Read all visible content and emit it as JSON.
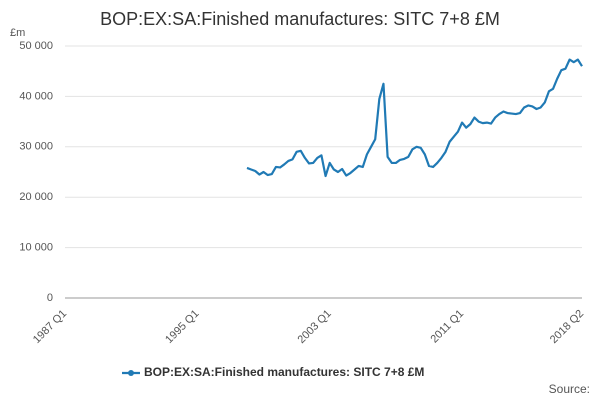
{
  "chart_data": {
    "type": "line",
    "title": "BOP:EX:SA:Finished manufactures: SITC 7+8 £M",
    "y_unit": "£m",
    "source": "Source:",
    "categories": [
      "1987 Q1",
      null,
      null,
      null,
      null,
      null,
      null,
      null,
      null,
      null,
      null,
      null,
      null,
      null,
      null,
      null,
      null,
      null,
      null,
      null,
      null,
      null,
      null,
      null,
      null,
      null,
      null,
      null,
      null,
      null,
      null,
      null,
      "1995 Q1",
      null,
      null,
      null,
      null,
      null,
      null,
      null,
      null,
      null,
      null,
      null,
      null,
      null,
      null,
      null,
      null,
      null,
      null,
      null,
      null,
      null,
      null,
      null,
      null,
      null,
      null,
      null,
      null,
      null,
      null,
      null,
      "2003 Q1",
      null,
      null,
      null,
      null,
      null,
      null,
      null,
      null,
      null,
      null,
      null,
      null,
      null,
      null,
      null,
      null,
      null,
      null,
      null,
      null,
      null,
      null,
      null,
      null,
      null,
      null,
      null,
      null,
      null,
      null,
      null,
      "2011 Q1",
      null,
      null,
      null,
      null,
      null,
      null,
      null,
      null,
      null,
      null,
      null,
      null,
      null,
      null,
      null,
      null,
      null,
      null,
      null,
      null,
      null,
      null,
      null,
      null,
      null,
      null,
      null,
      null,
      "2018 Q2"
    ],
    "series": [
      {
        "name": "BOP:EX:SA:Finished manufactures: SITC 7+8 £M",
        "color": "#207ab5",
        "values": [
          null,
          null,
          null,
          null,
          null,
          null,
          null,
          null,
          null,
          null,
          null,
          null,
          null,
          null,
          null,
          null,
          null,
          null,
          null,
          null,
          null,
          null,
          null,
          null,
          null,
          null,
          null,
          null,
          null,
          null,
          null,
          null,
          null,
          null,
          null,
          null,
          null,
          null,
          null,
          null,
          null,
          null,
          null,
          null,
          25800,
          25500,
          25200,
          24500,
          25000,
          24400,
          24600,
          26000,
          25900,
          26500,
          27200,
          27500,
          29000,
          29200,
          27800,
          26700,
          26800,
          27800,
          28300,
          24200,
          26800,
          25500,
          25000,
          25600,
          24300,
          24800,
          25500,
          26200,
          26000,
          28500,
          30000,
          31500,
          39500,
          42500,
          28000,
          26800,
          26800,
          27400,
          27600,
          28000,
          29500,
          30000,
          29800,
          28500,
          26200,
          26000,
          26800,
          27800,
          29000,
          31000,
          32000,
          33000,
          34800,
          33800,
          34500,
          35800,
          35000,
          34700,
          34800,
          34600,
          35800,
          36500,
          37000,
          36700,
          36600,
          36500,
          36700,
          37800,
          38200,
          38000,
          37500,
          37800,
          38800,
          41000,
          41500,
          43500,
          45200,
          45500,
          47300,
          46800,
          47300,
          46000
        ]
      }
    ],
    "ylim": [
      0,
      50000
    ],
    "yticks": [
      0,
      {
        "value": 10000,
        "label": "10 000"
      },
      {
        "value": 20000,
        "label": "20 000"
      },
      {
        "value": 30000,
        "label": "30 000"
      },
      {
        "value": 40000,
        "label": "40 000"
      },
      {
        "value": 50000,
        "label": "50 000"
      }
    ],
    "grid": true
  }
}
